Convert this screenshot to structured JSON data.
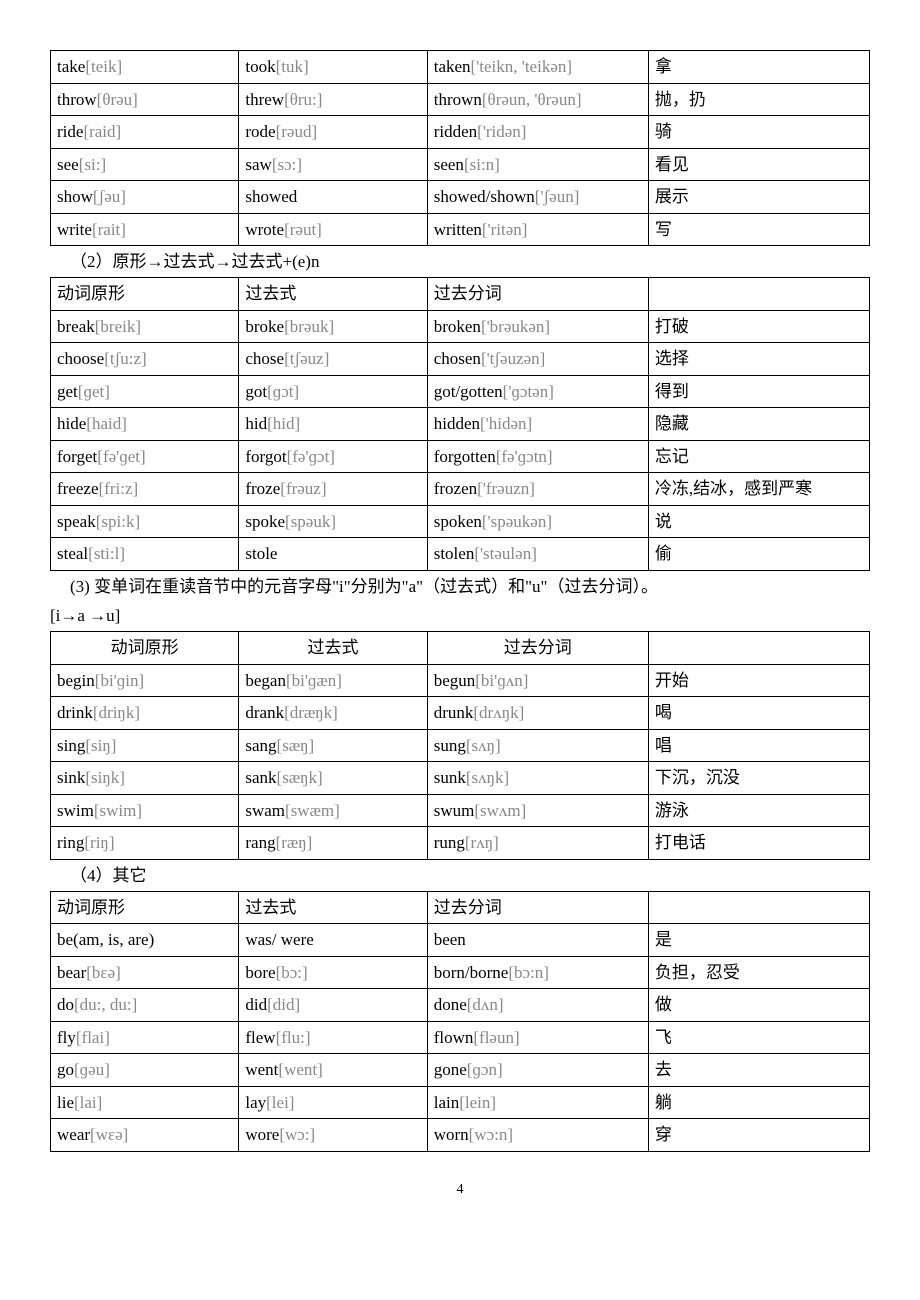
{
  "table1": {
    "rows": [
      [
        "take[teik]",
        "took[tuk]",
        "taken['teikn, 'teikən]",
        "拿"
      ],
      [
        "throw[θrəu]",
        "threw[θru:]",
        "thrown[θrəun, 'θrəun]",
        "抛，扔"
      ],
      [
        "ride[raid]",
        "rode[rəud]",
        "ridden['ridən]",
        "骑"
      ],
      [
        "see[si:]",
        "saw[sɔ:]",
        "seen[si:n]",
        "看见"
      ],
      [
        "show[ʃəu]",
        "showed",
        "showed/shown['ʃəun]",
        "展示"
      ],
      [
        "write[rait]",
        "wrote[rəut]",
        "written['ritən]",
        "写"
      ]
    ]
  },
  "caption2": "（2）原形→过去式→过去式+(e)n",
  "table2": {
    "header": [
      "动词原形",
      "过去式",
      "过去分词",
      ""
    ],
    "rows": [
      [
        "break[breik]",
        "broke[brəuk]",
        "broken['brəukən]",
        "打破"
      ],
      [
        "choose[tʃu:z]",
        "chose[tʃəuz]",
        "chosen['tʃəuzən]",
        "选择"
      ],
      [
        "get[ɡet]",
        "got[ɡɔt]",
        "got/gotten['ɡɔtən]",
        "得到"
      ],
      [
        "hide[haid]",
        "hid[hid]",
        "hidden['hidən]",
        "隐藏"
      ],
      [
        "forget[fə'ɡet]",
        "forgot[fə'ɡɔt]",
        "forgotten[fə'ɡɔtn]",
        "忘记"
      ],
      [
        "freeze[fri:z]",
        "froze[frəuz]",
        "frozen['frəuzn]",
        "冷冻,结冰，感到严寒"
      ],
      [
        "speak[spi:k]",
        "spoke[spəuk]",
        "spoken['spəukən]",
        "说"
      ],
      [
        "steal[sti:l]",
        "stole",
        "stolen['stəulən]",
        "偷"
      ]
    ]
  },
  "caption3a": "(3) 变单词在重读音节中的元音字母\"i\"分别为\"a\"（过去式）和\"u\"（过去分词）。",
  "caption3b": "[i→a →u]",
  "table3": {
    "header": [
      "动词原形",
      "过去式",
      "过去分词",
      ""
    ],
    "rows": [
      [
        "begin[bi'ɡin]",
        "began[bi'ɡæn]",
        "begun[bi'ɡʌn]",
        "开始"
      ],
      [
        "drink[driŋk]",
        "drank[dræŋk]",
        "drunk[drʌŋk]",
        "喝"
      ],
      [
        "sing[siŋ]",
        "sang[sæŋ]",
        "sung[sʌŋ]",
        "唱"
      ],
      [
        "sink[siŋk]",
        "sank[sæŋk]",
        "sunk[sʌŋk]",
        "下沉，沉没"
      ],
      [
        "swim[swim]",
        "swam[swæm]",
        "swum[swʌm]",
        "游泳"
      ],
      [
        "ring[riŋ]",
        "rang[ræŋ]",
        "rung[rʌŋ]",
        "打电话"
      ]
    ]
  },
  "caption4": "（4）其它",
  "table4": {
    "header": [
      "动词原形",
      "过去式",
      "过去分词",
      ""
    ],
    "rows": [
      [
        "be(am, is, are)",
        "was/ were",
        "been",
        "是"
      ],
      [
        "bear[bεə]",
        "bore[bɔ:]",
        "born/borne[bɔ:n]",
        "负担，忍受"
      ],
      [
        "do[du:, du:]",
        "did[did]",
        "done[dʌn]",
        "做"
      ],
      [
        "fly[flai]",
        "flew[flu:]",
        "flown[fləun]",
        "飞"
      ],
      [
        "go[ɡəu]",
        "went[went]",
        "gone[ɡɔn]",
        "去"
      ],
      [
        "lie[lai]",
        "lay[lei]",
        "lain[lein]",
        "躺"
      ],
      [
        "wear[wεə]",
        "wore[wɔ:]",
        "worn[wɔ:n]",
        "穿"
      ]
    ]
  },
  "pagenum": "4"
}
